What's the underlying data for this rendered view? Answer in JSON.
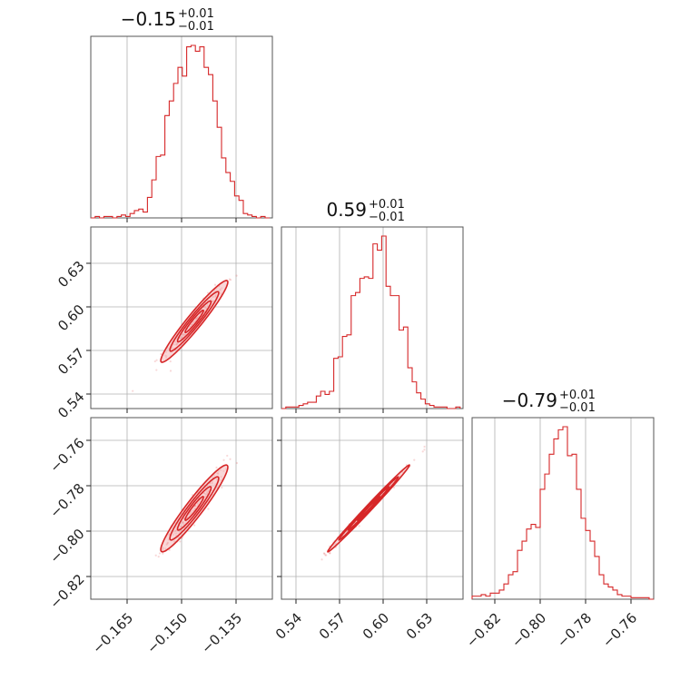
{
  "chart_data": {
    "type": "corner",
    "color": "#d62728",
    "fill_color": "#f4b6b8",
    "grid": true,
    "parameters": [
      {
        "title_main": "−0.15",
        "title_sup": "+0.01",
        "title_sub": "−0.01",
        "range": [
          -0.175,
          -0.125
        ],
        "ticks": [
          -0.165,
          -0.15,
          -0.135
        ],
        "tick_labels": [
          "−0.165",
          "−0.150",
          "−0.135"
        ],
        "histogram": {
          "bins": [
            -0.175,
            -0.1738,
            -0.1726,
            -0.1714,
            -0.1702,
            -0.169,
            -0.1678,
            -0.1666,
            -0.1654,
            -0.1642,
            -0.163,
            -0.1618,
            -0.1606,
            -0.1594,
            -0.1582,
            -0.157,
            -0.1558,
            -0.1546,
            -0.1534,
            -0.1522,
            -0.151,
            -0.1498,
            -0.1486,
            -0.1474,
            -0.1462,
            -0.145,
            -0.1438,
            -0.1426,
            -0.1414,
            -0.1402,
            -0.139,
            -0.1378,
            -0.1366,
            -0.1354,
            -0.1342,
            -0.133,
            -0.1318,
            -0.1306,
            -0.1294,
            -0.1282,
            -0.127,
            -0.1258
          ],
          "counts": [
            0,
            1,
            0,
            1,
            1,
            0,
            1,
            2,
            1,
            3,
            5,
            6,
            4,
            14,
            26,
            42,
            43,
            70,
            80,
            92,
            103,
            97,
            117,
            118,
            114,
            117,
            103,
            98,
            80,
            62,
            41,
            31,
            25,
            15,
            12,
            3,
            2,
            1,
            0,
            1,
            0
          ]
        }
      },
      {
        "title_main": "0.59",
        "title_sup": "+0.01",
        "title_sub": "−0.01",
        "range": [
          0.53,
          0.655
        ],
        "ticks": [
          0.54,
          0.57,
          0.6,
          0.63
        ],
        "tick_labels": [
          "0.54",
          "0.57",
          "0.60",
          "0.63"
        ],
        "histogram": {
          "bins": [
            0.53,
            0.533,
            0.536,
            0.539,
            0.542,
            0.545,
            0.548,
            0.551,
            0.554,
            0.557,
            0.56,
            0.563,
            0.566,
            0.569,
            0.572,
            0.575,
            0.578,
            0.581,
            0.584,
            0.587,
            0.59,
            0.593,
            0.596,
            0.599,
            0.602,
            0.605,
            0.608,
            0.611,
            0.614,
            0.617,
            0.62,
            0.623,
            0.626,
            0.629,
            0.632,
            0.635,
            0.638,
            0.641,
            0.644,
            0.647,
            0.65,
            0.653
          ],
          "counts": [
            0,
            1,
            1,
            1,
            2,
            3,
            4,
            4,
            8,
            11,
            9,
            11,
            32,
            33,
            46,
            47,
            72,
            74,
            83,
            84,
            83,
            105,
            101,
            110,
            78,
            72,
            72,
            50,
            52,
            26,
            17,
            10,
            6,
            3,
            2,
            1,
            1,
            1,
            0,
            0,
            1
          ]
        }
      },
      {
        "title_main": "−0.79",
        "title_sup": "+0.01",
        "title_sub": "−0.01",
        "range": [
          -0.83,
          -0.75
        ],
        "ticks": [
          -0.82,
          -0.8,
          -0.78,
          -0.76
        ],
        "tick_labels": [
          "−0.82",
          "−0.80",
          "−0.78",
          "−0.76"
        ],
        "histogram": {
          "bins": [
            -0.83,
            -0.828,
            -0.826,
            -0.824,
            -0.822,
            -0.82,
            -0.818,
            -0.816,
            -0.814,
            -0.812,
            -0.81,
            -0.808,
            -0.806,
            -0.804,
            -0.802,
            -0.8,
            -0.798,
            -0.796,
            -0.794,
            -0.792,
            -0.79,
            -0.788,
            -0.786,
            -0.784,
            -0.782,
            -0.78,
            -0.778,
            -0.776,
            -0.774,
            -0.772,
            -0.77,
            -0.768,
            -0.766,
            -0.764,
            -0.762,
            -0.76,
            -0.758,
            -0.756,
            -0.754,
            -0.752,
            -0.75
          ],
          "counts": [
            2,
            2,
            3,
            2,
            4,
            4,
            6,
            10,
            16,
            18,
            32,
            38,
            46,
            49,
            47,
            72,
            82,
            95,
            105,
            111,
            113,
            94,
            95,
            72,
            53,
            45,
            38,
            28,
            16,
            10,
            8,
            6,
            3,
            2,
            2,
            1,
            1,
            1,
            1,
            0
          ]
        }
      }
    ],
    "scatter_center": [
      -0.1465,
      0.59,
      -0.79
    ],
    "scatter_sigma": [
      0.0042,
      0.0128,
      0.0087
    ],
    "correlations": {
      "1_0": 0.96,
      "2_0": 0.95,
      "2_1": 0.995
    }
  }
}
